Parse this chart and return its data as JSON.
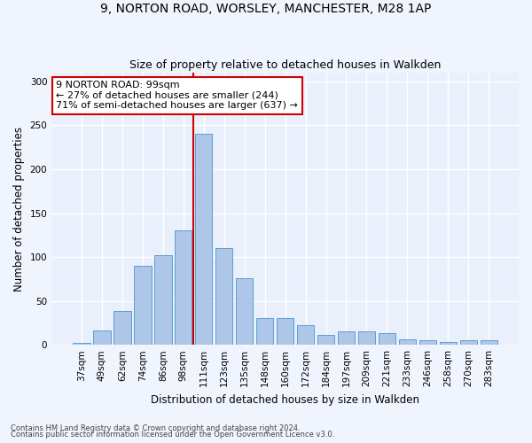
{
  "title1": "9, NORTON ROAD, WORSLEY, MANCHESTER, M28 1AP",
  "title2": "Size of property relative to detached houses in Walkden",
  "xlabel": "Distribution of detached houses by size in Walkden",
  "ylabel": "Number of detached properties",
  "categories": [
    "37sqm",
    "49sqm",
    "62sqm",
    "74sqm",
    "86sqm",
    "98sqm",
    "111sqm",
    "123sqm",
    "135sqm",
    "148sqm",
    "160sqm",
    "172sqm",
    "184sqm",
    "197sqm",
    "209sqm",
    "221sqm",
    "233sqm",
    "246sqm",
    "258sqm",
    "270sqm",
    "283sqm"
  ],
  "values": [
    2,
    16,
    39,
    90,
    102,
    130,
    240,
    110,
    76,
    30,
    30,
    22,
    11,
    15,
    15,
    13,
    6,
    5,
    3,
    5,
    5
  ],
  "bar_color": "#aec6e8",
  "bar_edge_color": "#5a9fd4",
  "vline_x_index": 5,
  "vline_color": "#cc0000",
  "annotation_line1": "9 NORTON ROAD: 99sqm",
  "annotation_line2": "← 27% of detached houses are smaller (244)",
  "annotation_line3": "71% of semi-detached houses are larger (637) →",
  "annotation_box_color": "#ffffff",
  "annotation_box_edge": "#cc0000",
  "ylim": [
    0,
    310
  ],
  "yticks": [
    0,
    50,
    100,
    150,
    200,
    250,
    300
  ],
  "bg_color": "#eaf0fb",
  "grid_color": "#ffffff",
  "fig_bg_color": "#f0f4fd",
  "footer1": "Contains HM Land Registry data © Crown copyright and database right 2024.",
  "footer2": "Contains public sector information licensed under the Open Government Licence v3.0."
}
